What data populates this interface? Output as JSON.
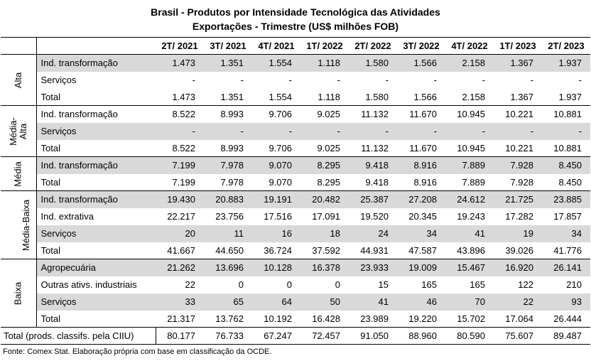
{
  "title_line1": "Brasil - Produtos por Intensidade Tecnológica das Atividades",
  "title_line2": "Exportações - Trimestre (US$ milhões FOB)",
  "columns": [
    "2T/ 2021",
    "3T/ 2021",
    "4T/ 2021",
    "1T/ 2022",
    "2T/ 2022",
    "3T/ 2022",
    "4T/ 2022",
    "1T/ 2023",
    "2T/ 2023"
  ],
  "groups": [
    {
      "name": "Alta",
      "rows": [
        {
          "label": "Ind. transformação",
          "shade": true,
          "values": [
            "1.473",
            "1.351",
            "1.554",
            "1.118",
            "1.580",
            "1.566",
            "2.158",
            "1.367",
            "1.937"
          ]
        },
        {
          "label": "Serviços",
          "shade": false,
          "values": [
            "-",
            "-",
            "-",
            "-",
            "-",
            "-",
            "-",
            "-",
            "-"
          ]
        },
        {
          "label": "Total",
          "shade": false,
          "values": [
            "1.473",
            "1.351",
            "1.554",
            "1.118",
            "1.580",
            "1.566",
            "2.158",
            "1.367",
            "1.937"
          ]
        }
      ]
    },
    {
      "name": "Média-\nAlta",
      "rows": [
        {
          "label": "Ind. transformação",
          "shade": false,
          "values": [
            "8.522",
            "8.993",
            "9.706",
            "9.025",
            "11.132",
            "11.670",
            "10.945",
            "10.221",
            "10.881"
          ]
        },
        {
          "label": "Serviços",
          "shade": true,
          "values": [
            "-",
            "-",
            "-",
            "-",
            "-",
            "-",
            "-",
            "-",
            "-"
          ]
        },
        {
          "label": "Total",
          "shade": false,
          "values": [
            "8.522",
            "8.993",
            "9.706",
            "9.025",
            "11.132",
            "11.670",
            "10.945",
            "10.221",
            "10.881"
          ]
        }
      ]
    },
    {
      "name": "Média",
      "rows": [
        {
          "label": "Ind. transformação",
          "shade": true,
          "values": [
            "7.199",
            "7.978",
            "9.070",
            "8.295",
            "9.418",
            "8.916",
            "7.889",
            "7.928",
            "8.450"
          ]
        },
        {
          "label": "Total",
          "shade": false,
          "values": [
            "7.199",
            "7.978",
            "9.070",
            "8.295",
            "9.418",
            "8.916",
            "7.889",
            "7.928",
            "8.450"
          ]
        }
      ]
    },
    {
      "name": "Média-Baixa",
      "rows": [
        {
          "label": "Ind. transformação",
          "shade": true,
          "values": [
            "19.430",
            "20.883",
            "19.191",
            "20.482",
            "25.387",
            "27.208",
            "24.612",
            "21.725",
            "23.885"
          ]
        },
        {
          "label": "Ind. extrativa",
          "shade": false,
          "values": [
            "22.217",
            "23.756",
            "17.516",
            "17.091",
            "19.520",
            "20.345",
            "19.243",
            "17.282",
            "17.857"
          ]
        },
        {
          "label": "Serviços",
          "shade": true,
          "values": [
            "20",
            "11",
            "16",
            "18",
            "24",
            "34",
            "41",
            "19",
            "34"
          ]
        },
        {
          "label": "Total",
          "shade": false,
          "values": [
            "41.667",
            "44.650",
            "36.724",
            "37.592",
            "44.931",
            "47.587",
            "43.896",
            "39.026",
            "41.776"
          ]
        }
      ]
    },
    {
      "name": "Baixa",
      "rows": [
        {
          "label": "Agropecuária",
          "shade": true,
          "values": [
            "21.262",
            "13.696",
            "10.128",
            "16.378",
            "23.933",
            "19.009",
            "15.467",
            "16.920",
            "26.141"
          ]
        },
        {
          "label": "Outras ativs. industriais",
          "shade": false,
          "values": [
            "22",
            "0",
            "0",
            "0",
            "15",
            "165",
            "165",
            "122",
            "210"
          ]
        },
        {
          "label": "Serviços",
          "shade": true,
          "values": [
            "33",
            "65",
            "64",
            "50",
            "41",
            "46",
            "70",
            "22",
            "93"
          ]
        },
        {
          "label": "Total",
          "shade": false,
          "values": [
            "21.317",
            "13.762",
            "10.192",
            "16.428",
            "23.989",
            "19.220",
            "15.702",
            "17.064",
            "26.444"
          ]
        }
      ]
    }
  ],
  "total_row": {
    "label": "Total (prods. classifs. pela CIIU)",
    "values": [
      "80.177",
      "76.733",
      "67.247",
      "72.457",
      "91.050",
      "88.960",
      "80.590",
      "75.607",
      "89.487"
    ]
  },
  "source": "Fonte: Comex Stat. Elaboração própria com base em classificação da OCDE."
}
